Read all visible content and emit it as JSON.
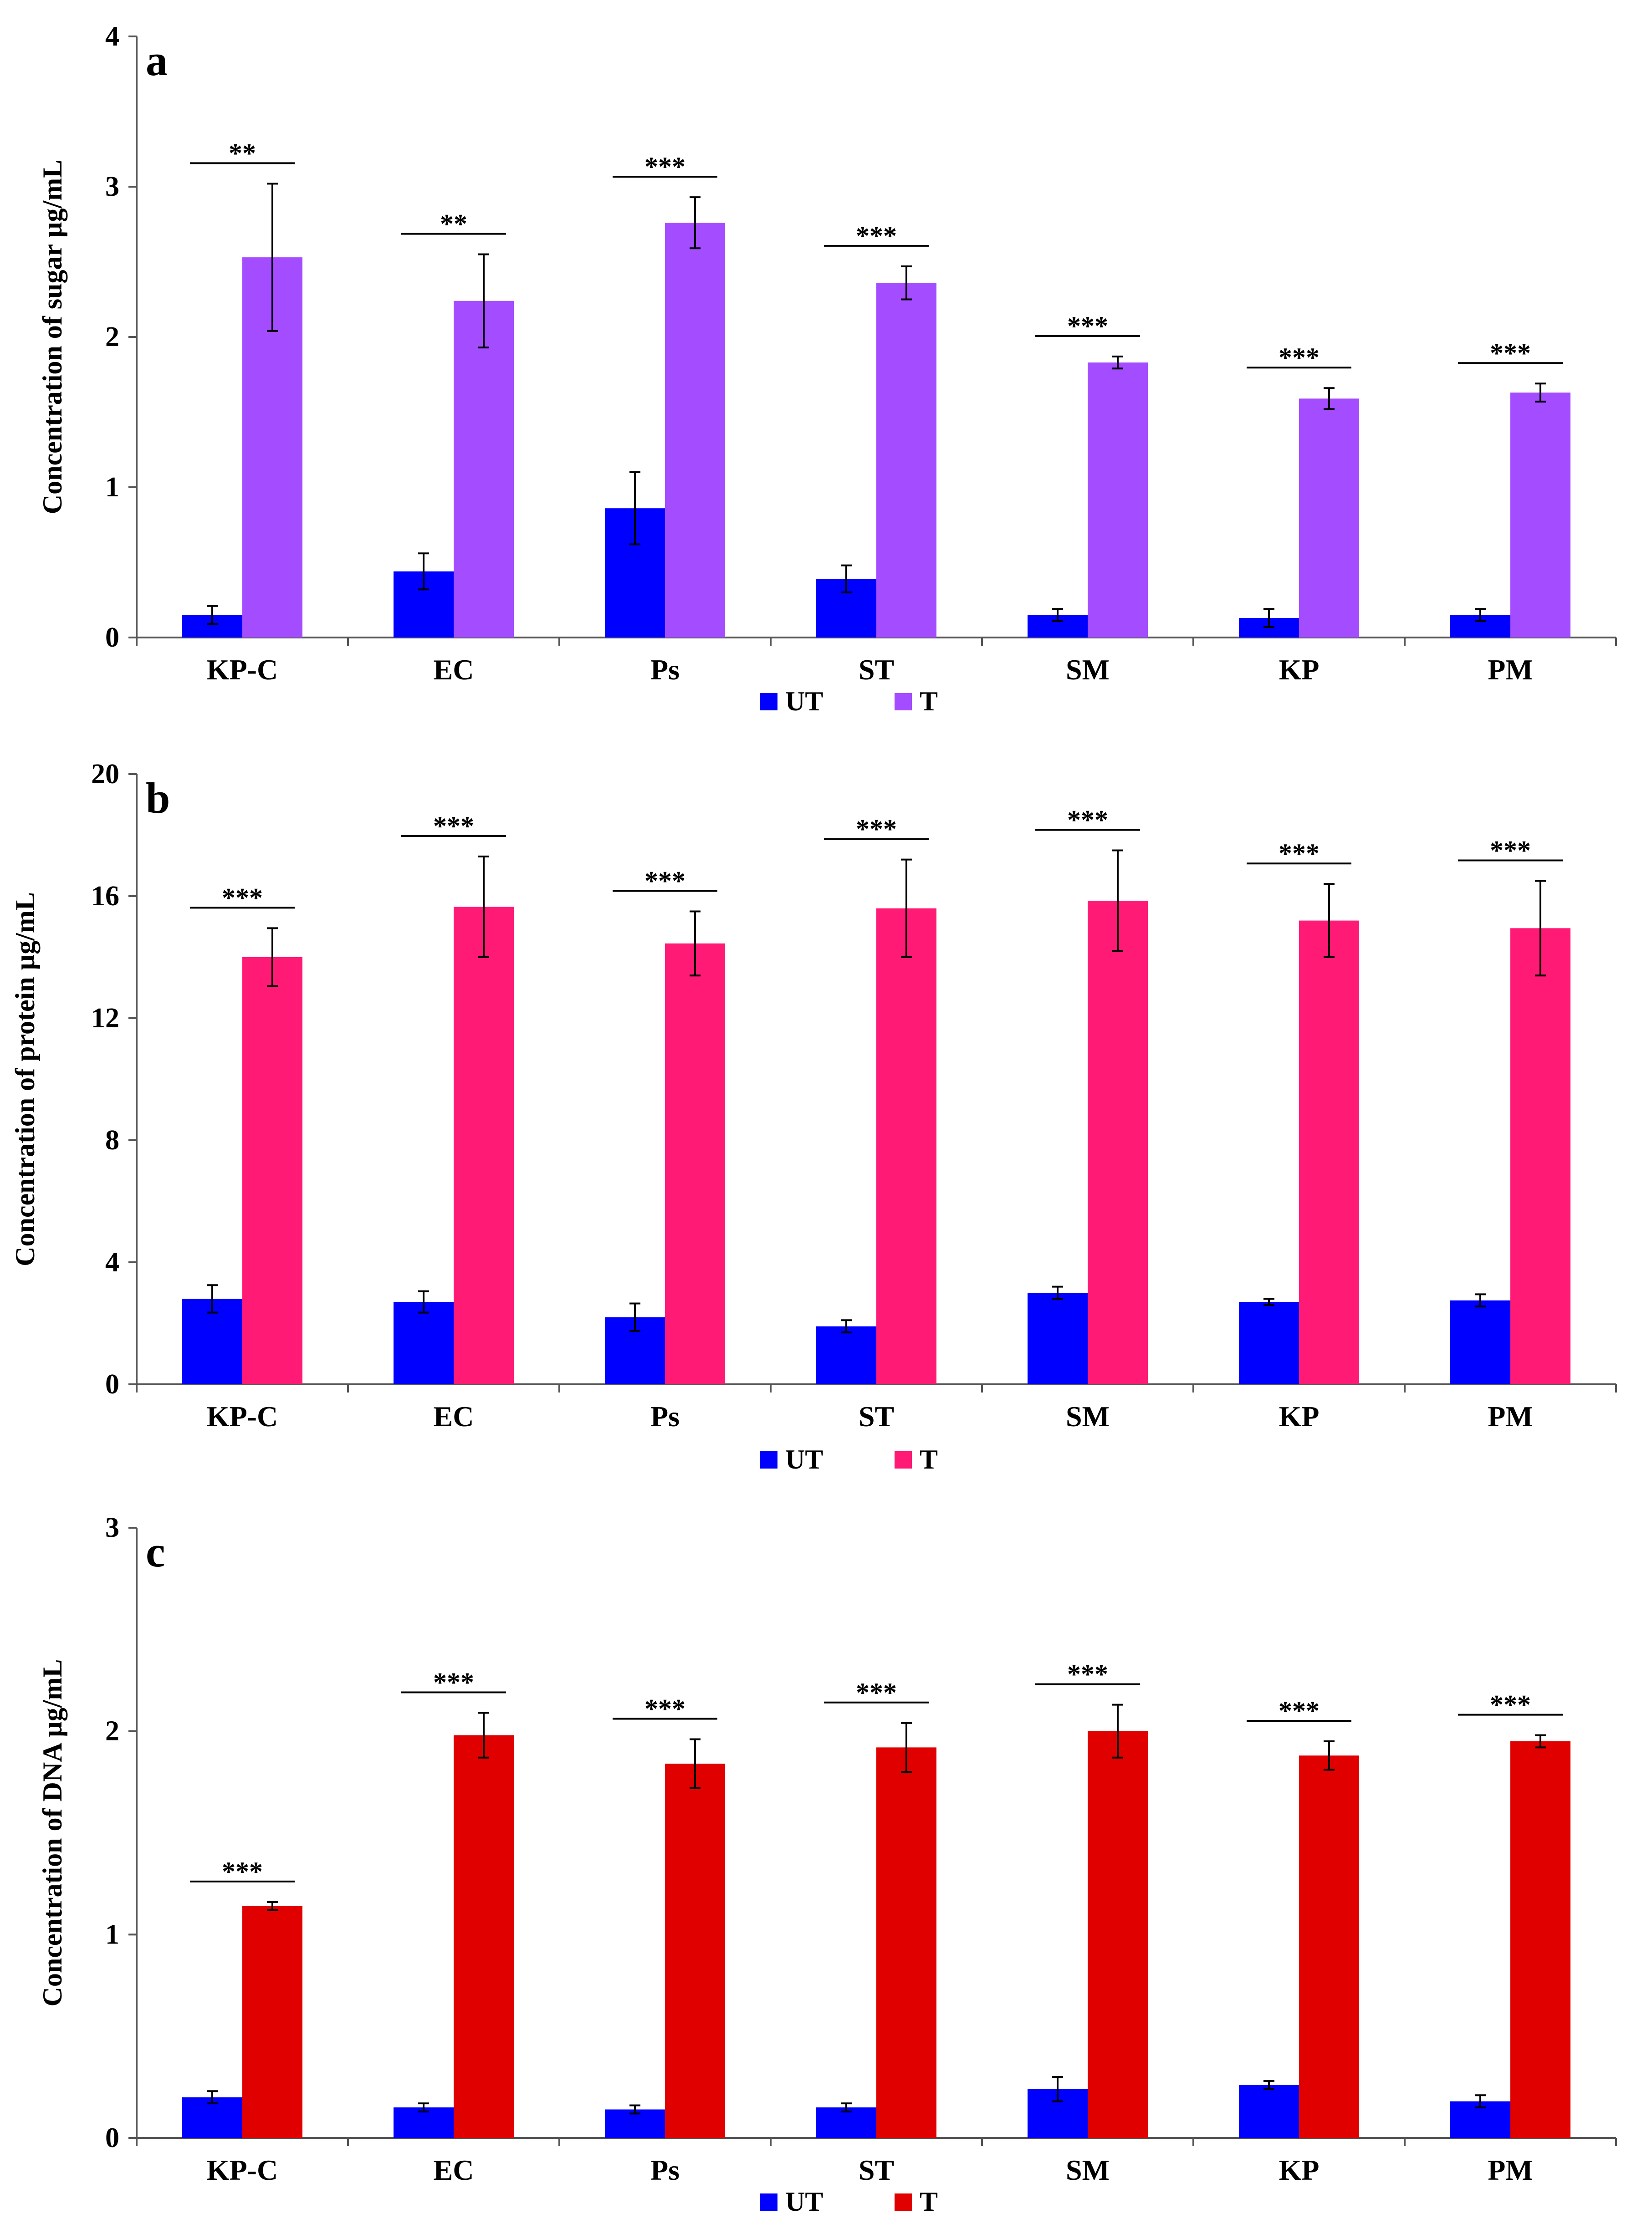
{
  "figure_title": "",
  "chart_data": [
    {
      "type": "bar",
      "panel": "a",
      "title": "",
      "xlabel": "",
      "ylabel": "Concentration of sugar µg/mL",
      "ylim": [
        0,
        4
      ],
      "yticks": [
        0,
        1,
        2,
        3,
        4
      ],
      "grid": false,
      "legend": "bottom-center",
      "categories": [
        "KP-C",
        "EC",
        "Ps",
        "ST",
        "SM",
        "KP",
        "PM"
      ],
      "series": [
        {
          "name": "UT",
          "color": "#0000ff",
          "values": [
            0.15,
            0.44,
            0.86,
            0.39,
            0.15,
            0.13,
            0.15
          ],
          "errors": [
            0.06,
            0.12,
            0.24,
            0.09,
            0.04,
            0.06,
            0.04
          ]
        },
        {
          "name": "T",
          "color": "#a44cff",
          "values": [
            2.53,
            2.24,
            2.76,
            2.36,
            1.83,
            1.59,
            1.63
          ],
          "errors": [
            0.49,
            0.31,
            0.17,
            0.11,
            0.04,
            0.07,
            0.06
          ]
        }
      ],
      "significance": [
        "**",
        "**",
        "***",
        "***",
        "***",
        "***",
        "***"
      ]
    },
    {
      "type": "bar",
      "panel": "b",
      "title": "",
      "xlabel": "",
      "ylabel": "Concentration of protein µg/mL",
      "ylim": [
        0,
        20
      ],
      "yticks": [
        0,
        4,
        8,
        12,
        16,
        20
      ],
      "grid": false,
      "legend": "bottom-center",
      "categories": [
        "KP-C",
        "EC",
        "Ps",
        "ST",
        "SM",
        "KP",
        "PM"
      ],
      "series": [
        {
          "name": "UT",
          "color": "#0000ff",
          "values": [
            2.8,
            2.7,
            2.2,
            1.9,
            3.0,
            2.7,
            2.75
          ],
          "errors": [
            0.45,
            0.35,
            0.45,
            0.2,
            0.2,
            0.1,
            0.2
          ]
        },
        {
          "name": "T",
          "color": "#ff1a75",
          "values": [
            14.0,
            15.65,
            14.45,
            15.6,
            15.85,
            15.2,
            14.95
          ],
          "errors": [
            0.95,
            1.65,
            1.05,
            1.6,
            1.65,
            1.2,
            1.55
          ]
        }
      ],
      "significance": [
        "***",
        "***",
        "***",
        "***",
        "***",
        "***",
        "***"
      ]
    },
    {
      "type": "bar",
      "panel": "c",
      "title": "",
      "xlabel": "",
      "ylabel": "Concentration of DNA µg/mL",
      "ylim": [
        0,
        3
      ],
      "yticks": [
        0,
        1,
        2,
        3
      ],
      "grid": false,
      "legend": "bottom-center",
      "categories": [
        "KP-C",
        "EC",
        "Ps",
        "ST",
        "SM",
        "KP",
        "PM"
      ],
      "series": [
        {
          "name": "UT",
          "color": "#0000ff",
          "values": [
            0.2,
            0.15,
            0.14,
            0.15,
            0.24,
            0.26,
            0.18
          ],
          "errors": [
            0.03,
            0.02,
            0.02,
            0.02,
            0.06,
            0.02,
            0.03
          ]
        },
        {
          "name": "T",
          "color": "#e00000",
          "values": [
            1.14,
            1.98,
            1.84,
            1.92,
            2.0,
            1.88,
            1.95
          ],
          "errors": [
            0.02,
            0.11,
            0.12,
            0.12,
            0.13,
            0.07,
            0.03
          ]
        }
      ],
      "significance": [
        "***",
        "***",
        "***",
        "***",
        "***",
        "***",
        "***"
      ]
    }
  ]
}
